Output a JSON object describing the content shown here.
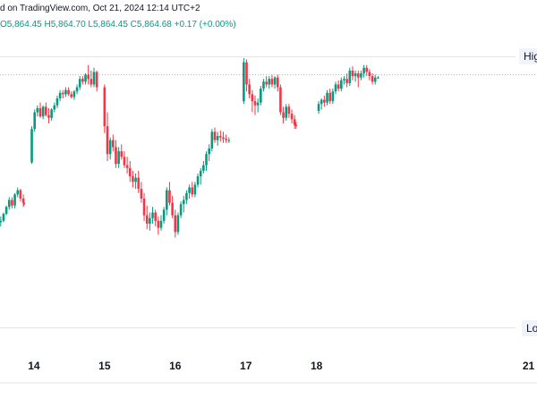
{
  "header": {
    "published": "d on TradingView.com, Oct 21, 2024 12:14 UTC+2",
    "ohlc": "O5,864.45  H5,864.70  L5,864.45  C5,864.68  +0.17 (+0.00%)"
  },
  "colors": {
    "up": "#089981",
    "down": "#f23645",
    "level_line": "#9ec9c3",
    "grid": "#e0e3eb"
  },
  "levels": [
    {
      "label": "Hig",
      "value": 5880
    },
    {
      "label": "Lo",
      "value": 5685
    }
  ],
  "reference_price": 5867,
  "chart_data": {
    "type": "candlestick",
    "x_range": [
      13.52,
      21.12
    ],
    "y_range": [
      5670,
      5895
    ],
    "xticks": [
      {
        "label": "14",
        "value": 14
      },
      {
        "label": "15",
        "value": 15
      },
      {
        "label": "16",
        "value": 16
      },
      {
        "label": "17",
        "value": 17
      },
      {
        "label": "18",
        "value": 18
      },
      {
        "label": "21",
        "value": 21
      }
    ],
    "candles": [
      [
        13.53,
        5761,
        5765,
        5758,
        5762
      ],
      [
        13.57,
        5762,
        5768,
        5761,
        5767
      ],
      [
        13.61,
        5767,
        5773,
        5766,
        5772
      ],
      [
        13.65,
        5772,
        5779,
        5770,
        5777
      ],
      [
        13.69,
        5777,
        5779,
        5771,
        5773
      ],
      [
        13.73,
        5773,
        5782,
        5771,
        5781
      ],
      [
        13.77,
        5781,
        5786,
        5779,
        5784
      ],
      [
        13.81,
        5784,
        5785,
        5776,
        5778
      ],
      [
        13.85,
        5778,
        5781,
        5772,
        5775
      ],
      [
        13.86,
        5775,
        5776,
        5773,
        5774
      ],
      [
        13.97,
        5804,
        5830,
        5803,
        5828
      ],
      [
        14.01,
        5828,
        5842,
        5826,
        5840
      ],
      [
        14.05,
        5840,
        5845,
        5837,
        5843
      ],
      [
        14.09,
        5843,
        5847,
        5836,
        5837
      ],
      [
        14.13,
        5837,
        5845,
        5835,
        5844
      ],
      [
        14.17,
        5844,
        5847,
        5837,
        5838
      ],
      [
        14.21,
        5838,
        5843,
        5832,
        5836
      ],
      [
        14.25,
        5836,
        5843,
        5834,
        5842
      ],
      [
        14.29,
        5842,
        5847,
        5840,
        5845
      ],
      [
        14.33,
        5845,
        5852,
        5843,
        5850
      ],
      [
        14.37,
        5850,
        5856,
        5848,
        5854
      ],
      [
        14.41,
        5854,
        5856,
        5850,
        5853
      ],
      [
        14.45,
        5853,
        5858,
        5851,
        5856
      ],
      [
        14.49,
        5856,
        5858,
        5852,
        5853
      ],
      [
        14.53,
        5853,
        5855,
        5850,
        5851
      ],
      [
        14.57,
        5851,
        5856,
        5849,
        5855
      ],
      [
        14.61,
        5855,
        5860,
        5853,
        5858
      ],
      [
        14.65,
        5858,
        5866,
        5856,
        5864
      ],
      [
        14.69,
        5864,
        5866,
        5860,
        5862
      ],
      [
        14.73,
        5862,
        5868,
        5860,
        5867
      ],
      [
        14.77,
        5867,
        5874,
        5860,
        5864
      ],
      [
        14.81,
        5864,
        5870,
        5858,
        5860
      ],
      [
        14.85,
        5860,
        5872,
        5858,
        5869
      ],
      [
        14.89,
        5869,
        5870,
        5855,
        5858
      ],
      [
        15.0,
        5858,
        5860,
        5825,
        5830
      ],
      [
        15.04,
        5830,
        5840,
        5805,
        5810
      ],
      [
        15.08,
        5810,
        5822,
        5806,
        5820
      ],
      [
        15.12,
        5820,
        5824,
        5812,
        5815
      ],
      [
        15.16,
        5815,
        5820,
        5800,
        5803
      ],
      [
        15.2,
        5803,
        5815,
        5800,
        5812
      ],
      [
        15.24,
        5812,
        5817,
        5806,
        5808
      ],
      [
        15.28,
        5808,
        5812,
        5800,
        5802
      ],
      [
        15.32,
        5802,
        5808,
        5796,
        5800
      ],
      [
        15.36,
        5800,
        5805,
        5790,
        5794
      ],
      [
        15.4,
        5794,
        5798,
        5786,
        5790
      ],
      [
        15.44,
        5790,
        5796,
        5785,
        5793
      ],
      [
        15.48,
        5793,
        5798,
        5782,
        5785
      ],
      [
        15.52,
        5785,
        5790,
        5775,
        5778
      ],
      [
        15.56,
        5778,
        5782,
        5762,
        5766
      ],
      [
        15.6,
        5766,
        5773,
        5756,
        5760
      ],
      [
        15.64,
        5760,
        5768,
        5755,
        5764
      ],
      [
        15.68,
        5764,
        5772,
        5760,
        5768
      ],
      [
        15.72,
        5768,
        5770,
        5758,
        5762
      ],
      [
        15.76,
        5762,
        5765,
        5752,
        5757
      ],
      [
        15.8,
        5757,
        5766,
        5755,
        5762
      ],
      [
        15.84,
        5762,
        5772,
        5760,
        5770
      ],
      [
        15.88,
        5770,
        5786,
        5766,
        5784
      ],
      [
        15.92,
        5784,
        5790,
        5773,
        5775
      ],
      [
        15.96,
        5775,
        5780,
        5764,
        5766
      ],
      [
        16.0,
        5766,
        5770,
        5750,
        5754
      ],
      [
        16.04,
        5754,
        5768,
        5752,
        5766
      ],
      [
        16.08,
        5766,
        5776,
        5764,
        5774
      ],
      [
        16.12,
        5774,
        5780,
        5768,
        5777
      ],
      [
        16.16,
        5777,
        5784,
        5774,
        5782
      ],
      [
        16.2,
        5782,
        5788,
        5778,
        5786
      ],
      [
        16.24,
        5786,
        5790,
        5779,
        5781
      ],
      [
        16.28,
        5781,
        5790,
        5779,
        5788
      ],
      [
        16.32,
        5788,
        5796,
        5786,
        5794
      ],
      [
        16.36,
        5794,
        5800,
        5788,
        5798
      ],
      [
        16.4,
        5798,
        5805,
        5796,
        5802
      ],
      [
        16.44,
        5802,
        5812,
        5798,
        5810
      ],
      [
        16.48,
        5810,
        5817,
        5805,
        5814
      ],
      [
        16.52,
        5814,
        5828,
        5812,
        5826
      ],
      [
        16.56,
        5826,
        5829,
        5818,
        5820
      ],
      [
        16.6,
        5820,
        5826,
        5816,
        5823
      ],
      [
        16.64,
        5823,
        5827,
        5819,
        5822
      ],
      [
        16.68,
        5822,
        5826,
        5818,
        5821
      ],
      [
        16.72,
        5821,
        5824,
        5818,
        5820
      ],
      [
        16.76,
        5820,
        5822,
        5818,
        5820
      ],
      [
        16.97,
        5848,
        5879,
        5846,
        5876
      ],
      [
        17.01,
        5876,
        5878,
        5855,
        5860
      ],
      [
        17.05,
        5860,
        5864,
        5850,
        5853
      ],
      [
        17.09,
        5853,
        5856,
        5840,
        5848
      ],
      [
        17.13,
        5848,
        5852,
        5838,
        5845
      ],
      [
        17.17,
        5845,
        5850,
        5840,
        5847
      ],
      [
        17.21,
        5847,
        5859,
        5845,
        5857
      ],
      [
        17.25,
        5857,
        5864,
        5855,
        5862
      ],
      [
        17.29,
        5862,
        5866,
        5858,
        5860
      ],
      [
        17.33,
        5860,
        5866,
        5857,
        5864
      ],
      [
        17.37,
        5864,
        5867,
        5858,
        5860
      ],
      [
        17.41,
        5860,
        5866,
        5857,
        5865
      ],
      [
        17.45,
        5865,
        5867,
        5855,
        5858
      ],
      [
        17.49,
        5858,
        5860,
        5838,
        5840
      ],
      [
        17.53,
        5840,
        5844,
        5832,
        5836
      ],
      [
        17.57,
        5836,
        5846,
        5834,
        5844
      ],
      [
        17.61,
        5844,
        5846,
        5836,
        5839
      ],
      [
        17.65,
        5839,
        5842,
        5832,
        5835
      ],
      [
        17.69,
        5835,
        5838,
        5828,
        5831
      ],
      [
        17.71,
        5831,
        5833,
        5828,
        5830
      ],
      [
        18.03,
        5841,
        5848,
        5839,
        5846
      ],
      [
        18.07,
        5846,
        5850,
        5842,
        5849
      ],
      [
        18.11,
        5849,
        5852,
        5844,
        5847
      ],
      [
        18.15,
        5847,
        5856,
        5845,
        5854
      ],
      [
        18.19,
        5854,
        5857,
        5846,
        5848
      ],
      [
        18.23,
        5848,
        5857,
        5846,
        5855
      ],
      [
        18.27,
        5855,
        5862,
        5853,
        5860
      ],
      [
        18.31,
        5860,
        5863,
        5855,
        5857
      ],
      [
        18.35,
        5857,
        5865,
        5855,
        5863
      ],
      [
        18.39,
        5863,
        5866,
        5860,
        5864
      ],
      [
        18.43,
        5864,
        5868,
        5858,
        5861
      ],
      [
        18.47,
        5861,
        5872,
        5859,
        5870
      ],
      [
        18.51,
        5870,
        5873,
        5863,
        5866
      ],
      [
        18.55,
        5866,
        5870,
        5862,
        5868
      ],
      [
        18.59,
        5868,
        5870,
        5858,
        5865
      ],
      [
        18.63,
        5865,
        5870,
        5863,
        5868
      ],
      [
        18.67,
        5868,
        5874,
        5865,
        5872
      ],
      [
        18.71,
        5872,
        5874,
        5866,
        5869
      ],
      [
        18.75,
        5869,
        5871,
        5863,
        5866
      ],
      [
        18.79,
        5866,
        5868,
        5860,
        5862
      ],
      [
        18.83,
        5862,
        5867,
        5860,
        5865
      ],
      [
        18.87,
        5865,
        5866,
        5864,
        5865
      ]
    ]
  }
}
